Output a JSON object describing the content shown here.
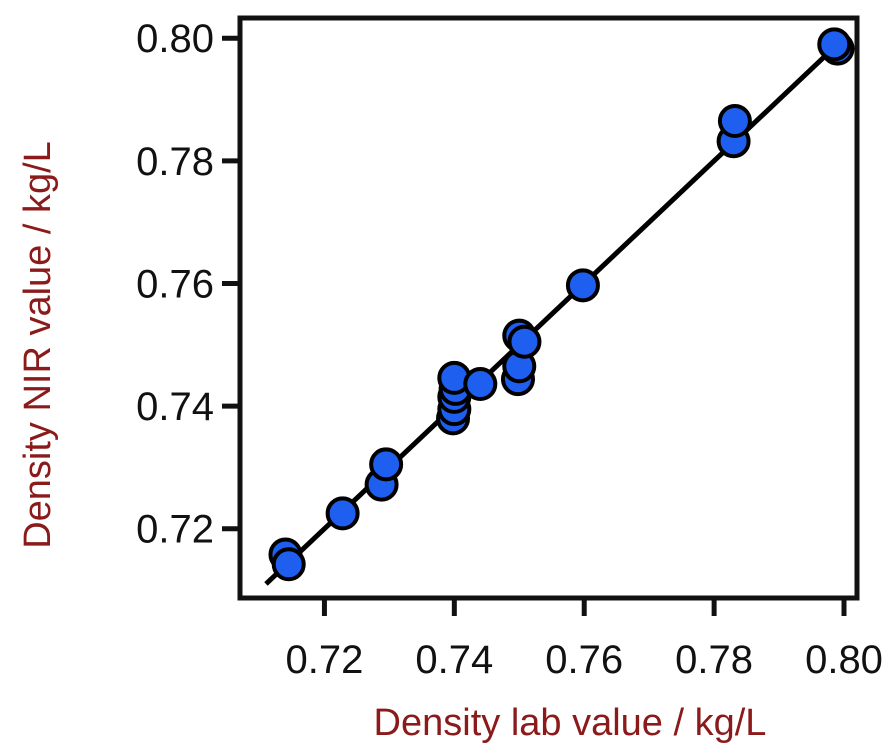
{
  "chart_data": {
    "type": "scatter",
    "title": "",
    "xlabel": "Density lab value / kg/L",
    "ylabel": "Density NIR value / kg/L",
    "xlim": [
      0.707,
      0.802
    ],
    "ylim": [
      0.7087,
      0.8033
    ],
    "xticks": [
      "0.72",
      "0.74",
      "0.76",
      "0.78",
      "0.80"
    ],
    "yticks": [
      "0.72",
      "0.74",
      "0.76",
      "0.78",
      "0.80"
    ],
    "grid": false,
    "legend": "none",
    "fit_line": {
      "x": [
        0.711,
        0.8
      ],
      "y": [
        0.711,
        0.8
      ]
    },
    "series": [
      {
        "x": [
          0.714,
          0.7145,
          0.7228,
          0.7288,
          0.7295,
          0.7398,
          0.74,
          0.74,
          0.7402,
          0.74,
          0.744,
          0.7498,
          0.75,
          0.75,
          0.7508,
          0.7598,
          0.783,
          0.7832,
          0.799,
          0.7985
        ],
        "y": [
          0.7158,
          0.7142,
          0.7225,
          0.7272,
          0.7305,
          0.738,
          0.7395,
          0.7415,
          0.7428,
          0.7446,
          0.7436,
          0.7444,
          0.7465,
          0.7515,
          0.7505,
          0.7597,
          0.7832,
          0.7865,
          0.7983,
          0.799
        ]
      }
    ],
    "colors": {
      "marker_fill": "#1f5ff0",
      "marker_edge": "#000000",
      "axis": "#111111",
      "axis_title": "#8b1a1a",
      "fit_line": "#000000"
    }
  }
}
